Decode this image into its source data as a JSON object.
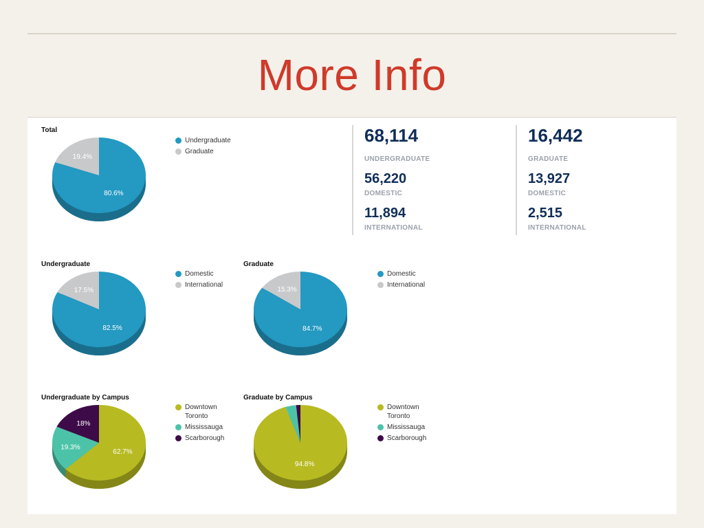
{
  "slide": {
    "title": "More Info"
  },
  "chart_data": [
    {
      "type": "pie",
      "title": "Total",
      "categories": [
        "Undergraduate",
        "Graduate"
      ],
      "values": [
        80.6,
        19.4
      ],
      "labels": [
        "80.6%",
        "19.4%"
      ],
      "colors": [
        "#2499c1",
        "#c8c9cb"
      ],
      "legend": "right"
    },
    {
      "type": "pie",
      "title": "Undergraduate",
      "categories": [
        "Domestic",
        "International"
      ],
      "values": [
        82.5,
        17.5
      ],
      "labels": [
        "82.5%",
        "17.5%"
      ],
      "colors": [
        "#2499c1",
        "#c8c9cb"
      ],
      "legend": "right"
    },
    {
      "type": "pie",
      "title": "Graduate",
      "categories": [
        "Domestic",
        "International"
      ],
      "values": [
        84.7,
        15.3
      ],
      "labels": [
        "84.7%",
        "15.3%"
      ],
      "colors": [
        "#2499c1",
        "#c8c9cb"
      ],
      "legend": "right"
    },
    {
      "type": "pie",
      "title": "Undergraduate by Campus",
      "categories": [
        "Downtown Toronto",
        "Mississauga",
        "Scarborough"
      ],
      "values": [
        62.7,
        19.3,
        18
      ],
      "labels": [
        "62.7%",
        "19.3%",
        "18%"
      ],
      "colors": [
        "#b8ba22",
        "#4cc3a8",
        "#3d0b47"
      ],
      "legend": "right"
    },
    {
      "type": "pie",
      "title": "Graduate by Campus",
      "categories": [
        "Downtown Toronto",
        "Mississauga",
        "Scarborough"
      ],
      "values": [
        94.8,
        3.7,
        1.5
      ],
      "labels": [
        "94.8%",
        "",
        ""
      ],
      "colors": [
        "#b8ba22",
        "#4cc3a8",
        "#3d0b47"
      ],
      "legend": "right"
    }
  ],
  "stats": [
    {
      "total": "68,114",
      "total_label": "UNDERGRADUATE",
      "domestic": "56,220",
      "domestic_label": "DOMESTIC",
      "international": "11,894",
      "international_label": "INTERNATIONAL"
    },
    {
      "total": "16,442",
      "total_label": "GRADUATE",
      "domestic": "13,927",
      "domestic_label": "DOMESTIC",
      "international": "2,515",
      "international_label": "INTERNATIONAL"
    }
  ]
}
